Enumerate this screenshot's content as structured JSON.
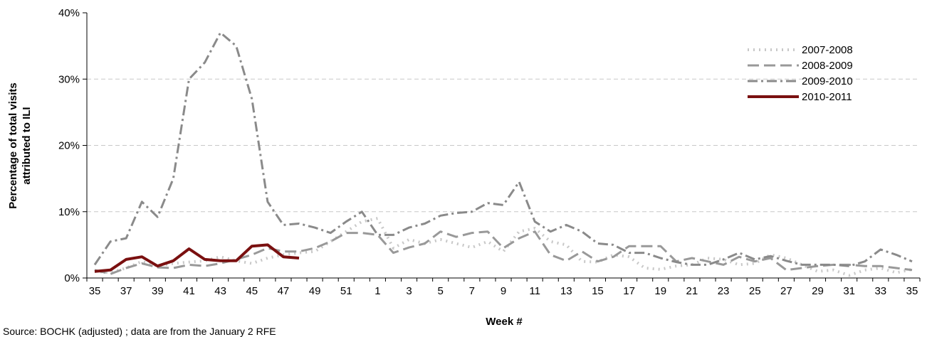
{
  "chart_data": {
    "type": "line",
    "xlabel": "Week #",
    "ylabel_line1": "Percentage of total visits",
    "ylabel_line2": "attributed to ILI",
    "ylim": [
      0,
      40
    ],
    "yticks": [
      "0%",
      "10%",
      "20%",
      "30%",
      "40%"
    ],
    "grid": "horizontal dashed",
    "legend_position": "top-right",
    "x_weeks": [
      35,
      36,
      37,
      38,
      39,
      40,
      41,
      42,
      43,
      44,
      45,
      46,
      47,
      48,
      49,
      50,
      51,
      52,
      1,
      2,
      3,
      4,
      5,
      6,
      7,
      8,
      9,
      10,
      11,
      12,
      13,
      14,
      15,
      16,
      17,
      18,
      19,
      20,
      21,
      22,
      23,
      24,
      25,
      26,
      27,
      28,
      29,
      30,
      31,
      32,
      33,
      34,
      35
    ],
    "x_tick_labels": [
      "35",
      "37",
      "39",
      "41",
      "43",
      "45",
      "47",
      "49",
      "51",
      "1",
      "3",
      "5",
      "7",
      "9",
      "11",
      "13",
      "15",
      "17",
      "19",
      "21",
      "23",
      "25",
      "27",
      "29",
      "31",
      "33",
      "35"
    ],
    "series": [
      {
        "name": "2007-2008",
        "color": "#c8c8c8",
        "dash": "2,6",
        "width": 4,
        "values": [
          1.0,
          0.8,
          1.5,
          2.5,
          1.8,
          2.2,
          2.4,
          2.6,
          3.2,
          2.6,
          2.2,
          3.0,
          3.5,
          3.8,
          4.0,
          5.5,
          7.0,
          8.5,
          9.0,
          4.5,
          5.8,
          5.2,
          5.8,
          5.2,
          4.6,
          5.5,
          4.0,
          7.0,
          7.5,
          5.5,
          5.0,
          2.5,
          2.4,
          3.5,
          3.2,
          1.5,
          1.3,
          1.8,
          2.0,
          3.0,
          2.8,
          2.0,
          2.2,
          3.5,
          3.0,
          2.0,
          1.0,
          1.2,
          0.4,
          1.2,
          1.5,
          0.8,
          1.3
        ]
      },
      {
        "name": "2008-2009",
        "color": "#999999",
        "dash": "16,7",
        "width": 3,
        "values": [
          1.2,
          0.6,
          1.5,
          2.2,
          1.6,
          1.5,
          2.0,
          1.8,
          2.2,
          2.8,
          3.5,
          4.5,
          4.0,
          4.0,
          4.5,
          5.5,
          6.8,
          6.8,
          6.5,
          3.8,
          4.6,
          5.2,
          7.0,
          6.2,
          6.8,
          7.0,
          4.5,
          6.0,
          7.0,
          3.5,
          2.6,
          4.0,
          2.5,
          3.2,
          4.8,
          4.8,
          4.8,
          2.5,
          3.0,
          2.5,
          2.0,
          3.2,
          2.5,
          3.0,
          1.2,
          1.5,
          1.8,
          2.0,
          2.0,
          1.8,
          1.8,
          1.5,
          1.2
        ]
      },
      {
        "name": "2009-2010",
        "color": "#8a8a8a",
        "dash": "14,5,3,5",
        "width": 3,
        "values": [
          2.0,
          5.5,
          6.0,
          11.5,
          9.2,
          15.0,
          30.0,
          32.5,
          37.0,
          35.0,
          27.0,
          11.5,
          8.0,
          8.2,
          7.6,
          6.8,
          8.5,
          10.0,
          6.5,
          6.5,
          7.6,
          8.2,
          9.4,
          9.8,
          10.0,
          11.3,
          11.0,
          14.5,
          8.5,
          7.0,
          8.0,
          7.0,
          5.2,
          5.0,
          3.8,
          3.8,
          3.0,
          2.4,
          2.0,
          2.0,
          2.8,
          3.8,
          2.8,
          3.3,
          2.6,
          2.0,
          2.0,
          2.0,
          1.8,
          2.5,
          4.3,
          3.5,
          2.5
        ]
      },
      {
        "name": "2010-2011",
        "color": "#7a1010",
        "dash": "",
        "width": 4,
        "values": [
          1.0,
          1.2,
          2.8,
          3.2,
          1.8,
          2.6,
          4.4,
          2.8,
          2.6,
          2.6,
          4.8,
          5.0,
          3.2,
          3.0
        ]
      }
    ]
  },
  "footnote": "Source: BOCHK (adjusted) ; data are from the January 2 RFE"
}
